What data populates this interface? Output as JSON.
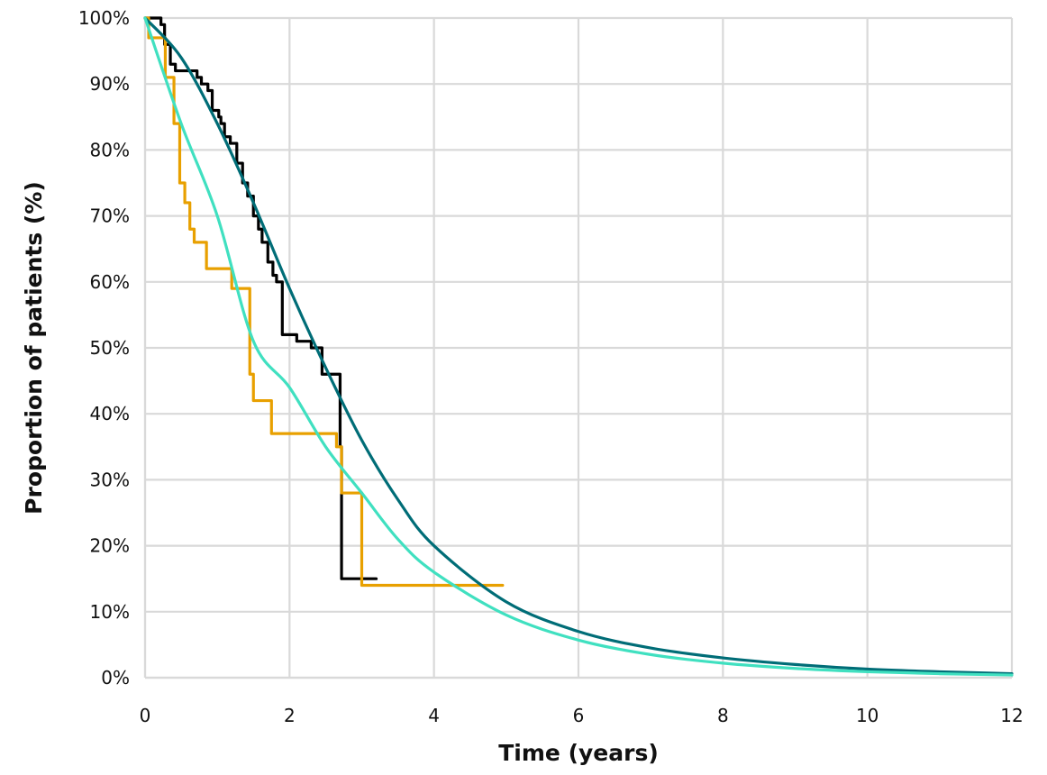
{
  "chart_data": {
    "type": "line",
    "xlabel": "Time (years)",
    "ylabel": "Proportion of patients  (%)",
    "xlim": [
      0,
      12
    ],
    "ylim": [
      0,
      100
    ],
    "xticks": [
      0,
      2,
      4,
      6,
      8,
      10,
      12
    ],
    "yticks": [
      0,
      10,
      20,
      30,
      40,
      50,
      60,
      70,
      80,
      90,
      100
    ],
    "ytick_labels": [
      "0%",
      "10%",
      "20%",
      "30%",
      "40%",
      "50%",
      "60%",
      "70%",
      "80%",
      "90%",
      "100%"
    ],
    "grid": true,
    "legend": "none",
    "series": [
      {
        "kind": "step",
        "color": "#000000",
        "x": [
          0,
          0.22,
          0.27,
          0.35,
          0.42,
          0.72,
          0.78,
          0.87,
          0.93,
          1.02,
          1.05,
          1.1,
          1.18,
          1.27,
          1.35,
          1.42,
          1.5,
          1.57,
          1.62,
          1.7,
          1.77,
          1.82,
          1.9,
          2.1,
          2.3,
          2.45,
          2.7,
          2.72,
          3.2
        ],
        "y": [
          100,
          99,
          96,
          93,
          92,
          91,
          90,
          89,
          86,
          85,
          84,
          82,
          81,
          78,
          75,
          73,
          70,
          68,
          66,
          63,
          61,
          60,
          52,
          51,
          50,
          46,
          35,
          15,
          15
        ]
      },
      {
        "kind": "step",
        "color": "#e8a000",
        "x": [
          0,
          0.05,
          0.28,
          0.4,
          0.48,
          0.55,
          0.62,
          0.68,
          0.85,
          1.2,
          1.45,
          1.5,
          1.55,
          1.75,
          2.65,
          2.72,
          3.0,
          4.95
        ],
        "y": [
          100,
          97,
          91,
          84,
          75,
          72,
          68,
          66,
          62,
          59,
          46,
          42,
          42,
          37,
          35,
          28,
          14,
          14
        ]
      },
      {
        "kind": "curve",
        "color": "#006d77",
        "x": [
          0,
          0.5,
          1,
          1.5,
          2,
          2.5,
          3,
          3.5,
          4,
          5,
          6,
          7,
          8,
          9,
          10,
          11,
          12
        ],
        "y": [
          100,
          94,
          84,
          72,
          59,
          47,
          36,
          27,
          20,
          11.5,
          7,
          4.5,
          3,
          2,
          1.3,
          0.9,
          0.6
        ]
      },
      {
        "kind": "curve",
        "color": "#40e0c0",
        "x": [
          0,
          0.5,
          1,
          1.5,
          2,
          2.5,
          3,
          3.5,
          4,
          5,
          6,
          7,
          8,
          9,
          10,
          11,
          12
        ],
        "y": [
          100,
          84,
          70,
          51,
          44,
          35,
          28,
          21,
          16,
          9.5,
          5.7,
          3.5,
          2.2,
          1.4,
          0.9,
          0.6,
          0.4
        ]
      }
    ]
  }
}
